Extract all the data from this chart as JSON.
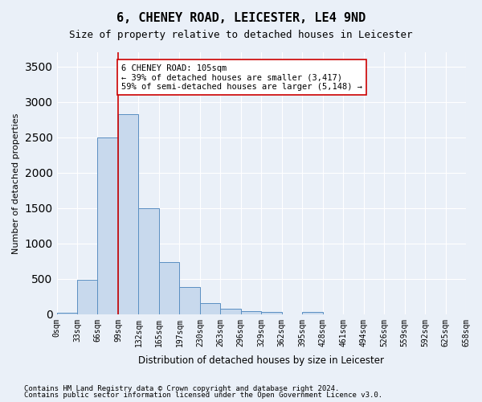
{
  "title": "6, CHENEY ROAD, LEICESTER, LE4 9ND",
  "subtitle": "Size of property relative to detached houses in Leicester",
  "xlabel": "Distribution of detached houses by size in Leicester",
  "ylabel": "Number of detached properties",
  "footnote1": "Contains HM Land Registry data © Crown copyright and database right 2024.",
  "footnote2": "Contains public sector information licensed under the Open Government Licence v3.0.",
  "bin_labels": [
    "0sqm",
    "33sqm",
    "66sqm",
    "99sqm",
    "132sqm",
    "165sqm",
    "197sqm",
    "230sqm",
    "263sqm",
    "296sqm",
    "329sqm",
    "362sqm",
    "395sqm",
    "428sqm",
    "461sqm",
    "494sqm",
    "526sqm",
    "559sqm",
    "592sqm",
    "625sqm",
    "658sqm"
  ],
  "bar_values": [
    20,
    490,
    2500,
    2820,
    1500,
    740,
    380,
    155,
    75,
    45,
    35,
    0,
    35,
    0,
    0,
    0,
    0,
    0,
    0,
    0
  ],
  "bar_color": "#c8d9ed",
  "bar_edge_color": "#5a8fc2",
  "ylim": [
    0,
    3700
  ],
  "yticks": [
    0,
    500,
    1000,
    1500,
    2000,
    2500,
    3000,
    3500
  ],
  "property_line_x": 3.0,
  "property_line_color": "#cc0000",
  "annotation_text": "6 CHENEY ROAD: 105sqm\n← 39% of detached houses are smaller (3,417)\n59% of semi-detached houses are larger (5,148) →",
  "annotation_box_color": "#ffffff",
  "annotation_box_edge": "#cc0000",
  "bg_color": "#eaf0f8",
  "plot_bg_color": "#eaf0f8",
  "grid_color": "#ffffff"
}
